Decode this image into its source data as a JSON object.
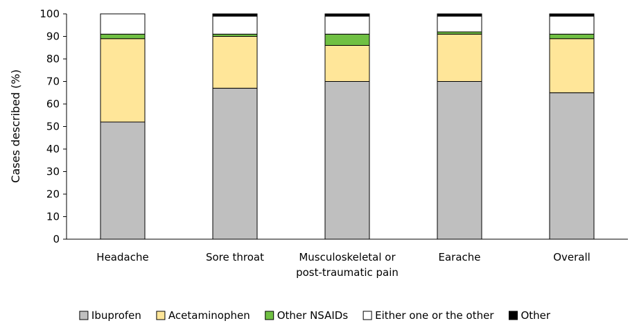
{
  "chart_data": {
    "type": "bar",
    "stacked": true,
    "title": "",
    "xlabel": "",
    "ylabel": "Cases described (%)",
    "ylim": [
      0,
      100
    ],
    "yticks": [
      0,
      10,
      20,
      30,
      40,
      50,
      60,
      70,
      80,
      90,
      100
    ],
    "grid": false,
    "legend_position": "bottom",
    "categories": [
      [
        "Headache"
      ],
      [
        "Sore throat"
      ],
      [
        "Musculoskeletal or",
        "post-traumatic pain"
      ],
      [
        "Earache"
      ],
      [
        "Overall"
      ]
    ],
    "series": [
      {
        "name": "Ibuprofen",
        "color": "#BFBFBF",
        "values": [
          52,
          67,
          70,
          70,
          65
        ]
      },
      {
        "name": "Acetaminophen",
        "color": "#FFE699",
        "values": [
          37,
          23,
          16,
          21,
          24
        ]
      },
      {
        "name": "Other NSAIDs",
        "color": "#70C043",
        "values": [
          2,
          1,
          5,
          1,
          2
        ]
      },
      {
        "name": "Either one or the other",
        "color": "#FFFFFF",
        "values": [
          9,
          8,
          8,
          7,
          8
        ]
      },
      {
        "name": "Other",
        "color": "#000000",
        "values": [
          0,
          1,
          1,
          1,
          1
        ]
      }
    ]
  }
}
